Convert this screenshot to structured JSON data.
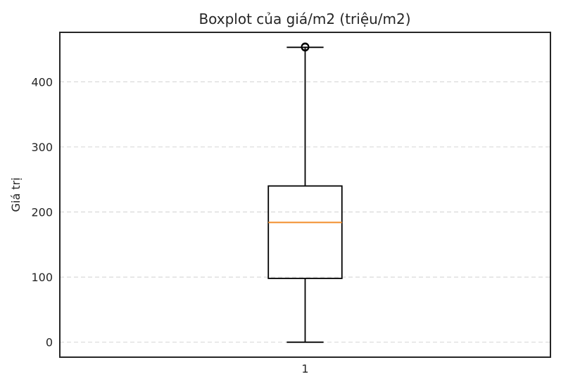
{
  "chart_data": {
    "type": "box",
    "title": "Boxplot của giá/m2 (triệu/m2)",
    "xlabel": "",
    "ylabel": "Giá trị",
    "categories": [
      "1"
    ],
    "boxes": [
      {
        "category": "1",
        "whisker_low": 0,
        "q1": 98,
        "median": 184,
        "q3": 240,
        "whisker_high": 453,
        "outliers": [
          453,
          454
        ]
      }
    ],
    "yticks": [
      0,
      100,
      200,
      300,
      400
    ],
    "ylim": [
      -23,
      476
    ],
    "grid": "y-dashed",
    "colors": {
      "box": "#000000",
      "median": "#f28e2b",
      "grid": "#d9d9d9",
      "axes": "#262626"
    }
  }
}
